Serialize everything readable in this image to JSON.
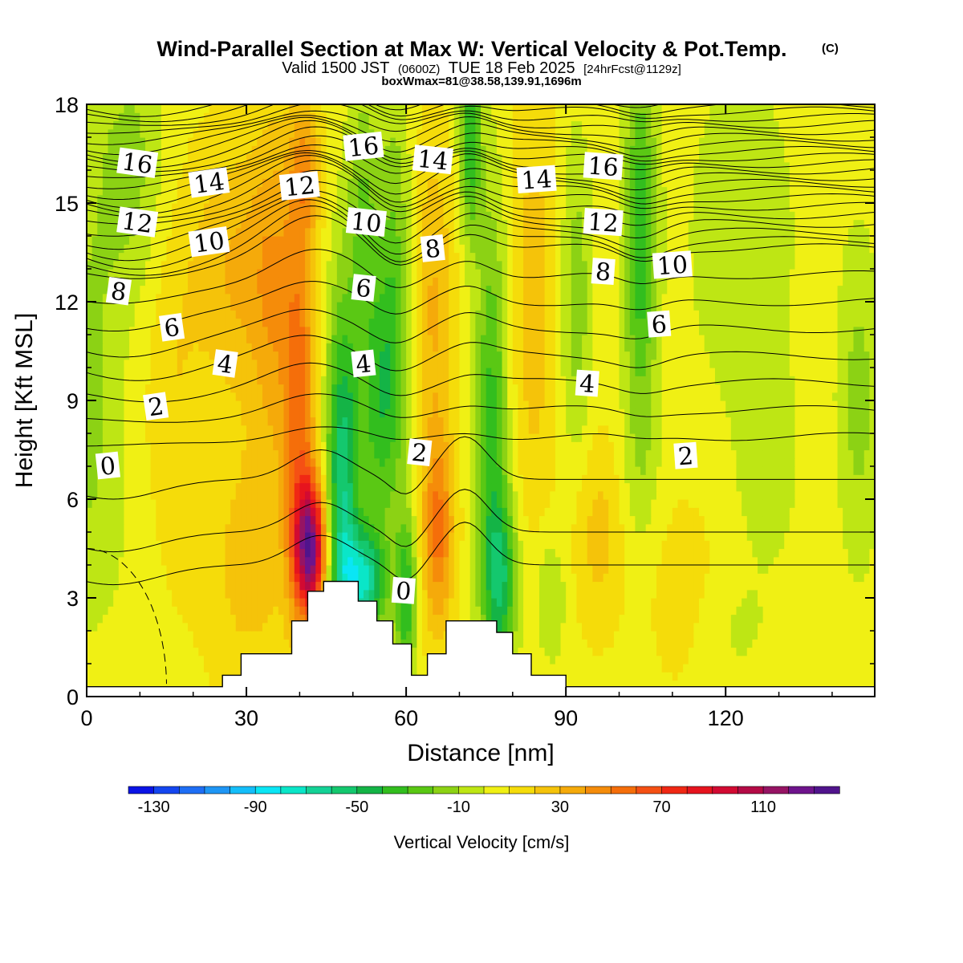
{
  "header": {
    "title": "Wind-Parallel Section at Max W: Vertical Velocity & Pot.Temp.",
    "copyright_mark": "(C)",
    "valid_prefix": "Valid 1500 JST",
    "valid_utc": "(0600Z)",
    "valid_date": "TUE 18 Feb 2025",
    "forecast_tag": "[24hrFcst@1129z]",
    "box_info": "boxWmax=81@38.58,139.91,1696m"
  },
  "chart_data": {
    "type": "heatmap",
    "title": "Wind-Parallel Section at Max W: Vertical Velocity & Pot.Temp.",
    "xlabel": "Distance [nm]",
    "ylabel": "Height [Kft MSL]",
    "xlim": [
      0,
      148
    ],
    "ylim": [
      0,
      18
    ],
    "x_ticks": [
      "0",
      "30",
      "60",
      "90",
      "120"
    ],
    "y_ticks": [
      "0",
      "3",
      "6",
      "9",
      "12",
      "15",
      "18"
    ],
    "x_tick_values": [
      0,
      30,
      60,
      90,
      120
    ],
    "y_tick_values": [
      0,
      3,
      6,
      9,
      12,
      15,
      18
    ],
    "colorbar": {
      "label": "Vertical Velocity [cm/s]",
      "tick_labels": [
        "-130",
        "-90",
        "-50",
        "-10",
        "30",
        "70",
        "110"
      ],
      "tick_values": [
        -130,
        -90,
        -50,
        -10,
        30,
        70,
        110
      ],
      "range": [
        -140,
        140
      ],
      "colors": [
        "#0a14e6",
        "#1446f0",
        "#1e6ef5",
        "#1e96f5",
        "#14befa",
        "#0ae6f5",
        "#0ae6c8",
        "#14d296",
        "#14c86e",
        "#14b446",
        "#32be1e",
        "#5ac814",
        "#8cd214",
        "#bee614",
        "#f0f014",
        "#f5dc0a",
        "#f5c30a",
        "#f5aa0a",
        "#f58c0a",
        "#f56e0a",
        "#f55014",
        "#f02814",
        "#e6141e",
        "#d20a32",
        "#b40a46",
        "#961464",
        "#6e148c",
        "#50148c"
      ]
    },
    "theta_contours": [
      {
        "label": "0",
        "x": 4,
        "y": 7.0
      },
      {
        "label": "0",
        "x": 59.5,
        "y": 3.2
      },
      {
        "label": "2",
        "x": 13,
        "y": 8.8
      },
      {
        "label": "2",
        "x": 62.5,
        "y": 7.4
      },
      {
        "label": "2",
        "x": 112.5,
        "y": 7.3
      },
      {
        "label": "4",
        "x": 26,
        "y": 10.1
      },
      {
        "label": "4",
        "x": 52,
        "y": 10.1
      },
      {
        "label": "4",
        "x": 94,
        "y": 9.5
      },
      {
        "label": "6",
        "x": 16,
        "y": 11.2
      },
      {
        "label": "6",
        "x": 52,
        "y": 12.4
      },
      {
        "label": "6",
        "x": 107.5,
        "y": 11.3
      },
      {
        "label": "8",
        "x": 6,
        "y": 12.3
      },
      {
        "label": "8",
        "x": 65,
        "y": 13.6
      },
      {
        "label": "8",
        "x": 97,
        "y": 12.9
      },
      {
        "label": "10",
        "x": 23,
        "y": 13.8
      },
      {
        "label": "10",
        "x": 52.5,
        "y": 14.4
      },
      {
        "label": "10",
        "x": 110,
        "y": 13.1
      },
      {
        "label": "12",
        "x": 9.5,
        "y": 14.4
      },
      {
        "label": "12",
        "x": 40,
        "y": 15.5
      },
      {
        "label": "12",
        "x": 97,
        "y": 14.4
      },
      {
        "label": "14",
        "x": 23,
        "y": 15.6
      },
      {
        "label": "14",
        "x": 65,
        "y": 16.3
      },
      {
        "label": "14",
        "x": 84.5,
        "y": 15.7
      },
      {
        "label": "16",
        "x": 9.5,
        "y": 16.2
      },
      {
        "label": "16",
        "x": 52,
        "y": 16.7
      },
      {
        "label": "16",
        "x": 97,
        "y": 16.1
      }
    ],
    "terrain_kft": [
      [
        0,
        0.3
      ],
      [
        25.5,
        0.3
      ],
      [
        25.5,
        0.65
      ],
      [
        29,
        0.65
      ],
      [
        29,
        1.3
      ],
      [
        38.5,
        1.3
      ],
      [
        38.5,
        2.3
      ],
      [
        41.5,
        2.3
      ],
      [
        41.5,
        3.2
      ],
      [
        44.5,
        3.2
      ],
      [
        44.5,
        3.5
      ],
      [
        51,
        3.5
      ],
      [
        51,
        2.9
      ],
      [
        54.5,
        2.9
      ],
      [
        54.5,
        2.3
      ],
      [
        57.5,
        2.3
      ],
      [
        57.5,
        1.6
      ],
      [
        61,
        1.6
      ],
      [
        61,
        0.65
      ],
      [
        64,
        0.65
      ],
      [
        64,
        1.3
      ],
      [
        67.5,
        1.3
      ],
      [
        67.5,
        2.3
      ],
      [
        77,
        2.3
      ],
      [
        77,
        1.95
      ],
      [
        80,
        1.95
      ],
      [
        80,
        1.3
      ],
      [
        83.5,
        1.3
      ],
      [
        83.5,
        0.65
      ],
      [
        90,
        0.65
      ],
      [
        90,
        0.3
      ],
      [
        148,
        0.3
      ]
    ],
    "w_features": [
      {
        "x": 0,
        "y": 9,
        "w": -20,
        "sx": 6,
        "sy": 6
      },
      {
        "x": 8,
        "y": 16,
        "w": -20,
        "sx": 7,
        "sy": 4
      },
      {
        "x": 8,
        "y": 4,
        "w": -3,
        "sx": 9,
        "sy": 3
      },
      {
        "x": 16,
        "y": 9,
        "w": 12,
        "sx": 5,
        "sy": 6
      },
      {
        "x": 30,
        "y": 4,
        "w": 18,
        "sx": 8,
        "sy": 4
      },
      {
        "x": 28,
        "y": 13,
        "w": 25,
        "sx": 9,
        "sy": 4
      },
      {
        "x": 35,
        "y": 12,
        "w": 22,
        "sx": 4,
        "sy": 6
      },
      {
        "x": 40,
        "y": 9,
        "w": 45,
        "sx": 3,
        "sy": 6
      },
      {
        "x": 42,
        "y": 4.5,
        "w": 110,
        "sx": 3,
        "sy": 2
      },
      {
        "x": 41,
        "y": 16,
        "w": 30,
        "sx": 3,
        "sy": 2
      },
      {
        "x": 48,
        "y": 6,
        "w": -65,
        "sx": 3,
        "sy": 6
      },
      {
        "x": 52,
        "y": 3.5,
        "w": -70,
        "sx": 4,
        "sy": 1.6
      },
      {
        "x": 55,
        "y": 9,
        "w": -40,
        "sx": 4,
        "sy": 4
      },
      {
        "x": 52,
        "y": 15,
        "w": -25,
        "sx": 3,
        "sy": 4
      },
      {
        "x": 58,
        "y": 13,
        "w": -25,
        "sx": 3,
        "sy": 6
      },
      {
        "x": 60,
        "y": 3,
        "w": -45,
        "sx": 2,
        "sy": 2.5
      },
      {
        "x": 66,
        "y": 5,
        "w": 45,
        "sx": 3,
        "sy": 3
      },
      {
        "x": 65,
        "y": 12,
        "w": 25,
        "sx": 4,
        "sy": 5
      },
      {
        "x": 72,
        "y": 17,
        "w": -45,
        "sx": 2,
        "sy": 3
      },
      {
        "x": 76,
        "y": 8,
        "w": -40,
        "sx": 3,
        "sy": 7
      },
      {
        "x": 78,
        "y": 3.5,
        "w": -45,
        "sx": 3,
        "sy": 2.5
      },
      {
        "x": 84,
        "y": 12,
        "w": 20,
        "sx": 4,
        "sy": 7
      },
      {
        "x": 87,
        "y": 3,
        "w": -18,
        "sx": 3,
        "sy": 2
      },
      {
        "x": 92,
        "y": 12,
        "w": -22,
        "sx": 3,
        "sy": 5
      },
      {
        "x": 96,
        "y": 5,
        "w": 18,
        "sx": 5,
        "sy": 3
      },
      {
        "x": 104,
        "y": 14,
        "w": -45,
        "sx": 3,
        "sy": 5
      },
      {
        "x": 104,
        "y": 7,
        "w": -12,
        "sx": 4,
        "sy": 3
      },
      {
        "x": 112,
        "y": 3,
        "w": 12,
        "sx": 7,
        "sy": 3
      },
      {
        "x": 123,
        "y": 14,
        "w": -15,
        "sx": 10,
        "sy": 5
      },
      {
        "x": 128,
        "y": 7,
        "w": -12,
        "sx": 6,
        "sy": 3
      },
      {
        "x": 120,
        "y": 2,
        "w": -8,
        "sx": 10,
        "sy": 2
      },
      {
        "x": 145,
        "y": 9,
        "w": -20,
        "sx": 4,
        "sy": 5
      }
    ]
  }
}
